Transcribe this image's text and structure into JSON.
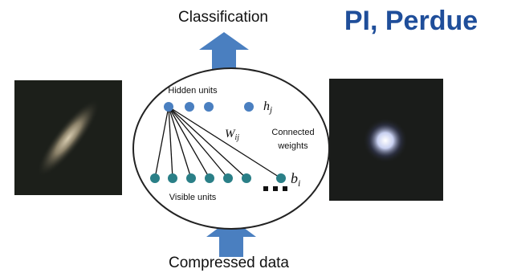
{
  "header": {
    "title": "Classification",
    "badge": "PI, Perdue"
  },
  "footer": {
    "label": "Compressed data"
  },
  "network": {
    "hidden_label": "Hidden units",
    "visible_label": "Visible units",
    "hidden_symbol": {
      "base": "h",
      "sub": "j"
    },
    "visible_symbol": {
      "base": "b",
      "sub": "i"
    },
    "weight_symbol": {
      "base": "W",
      "sub": "ij"
    },
    "weights_label": [
      "Connected",
      "weights"
    ]
  }
}
